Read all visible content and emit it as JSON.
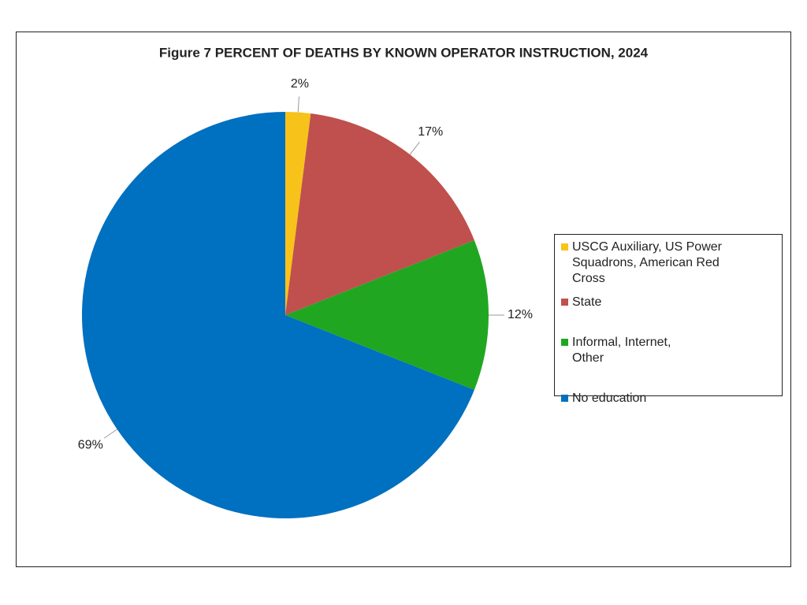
{
  "chart_data": {
    "type": "pie",
    "title": "Figure 7 PERCENT OF DEATHS BY KNOWN OPERATOR INSTRUCTION, 2024",
    "categories": [
      "USCG Auxiliary, US Power Squadrons, American Red Cross",
      "State",
      "Informal, Internet, Other",
      "No education"
    ],
    "values": [
      2,
      17,
      12,
      69
    ],
    "value_labels": [
      "2%",
      "17%",
      "12%",
      "69%"
    ],
    "colors": [
      "#f7c31a",
      "#c0504d",
      "#21a621",
      "#0070c0"
    ],
    "legend": "right"
  }
}
